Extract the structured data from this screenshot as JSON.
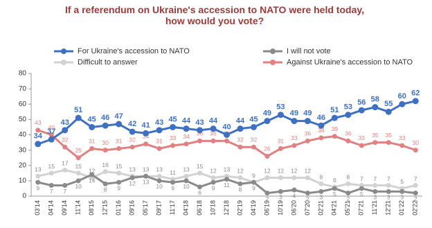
{
  "chart_data": {
    "type": "line",
    "title": "If a referendum on Ukraine's accession to NATO were held today, how would you vote?",
    "categories": [
      "03'14",
      "04'14",
      "09'14",
      "11'14",
      "08'15",
      "12'15",
      "01'16",
      "09'16",
      "05'17",
      "09'17",
      "11'17",
      "04'18",
      "06'18",
      "10'18",
      "12'18",
      "02'19",
      "04'19",
      "06'19",
      "10'19",
      "06'20",
      "07'20",
      "02'21",
      "04'21",
      "05'21",
      "07'21",
      "11'21",
      "12'21",
      "01'22",
      "02'22"
    ],
    "series": [
      {
        "name": "For Ukraine's accession to NATO",
        "color": "#3d6fc2",
        "values": [
          34,
          37,
          43,
          51,
          45,
          46,
          47,
          42,
          41,
          43,
          45,
          44,
          43,
          44,
          40,
          44,
          45,
          49,
          53,
          49,
          49,
          46,
          51,
          53,
          56,
          58,
          55,
          60,
          62
        ]
      },
      {
        "name": "I will not vote",
        "color": "#8a8a8a",
        "values": [
          9,
          7,
          7,
          10,
          14,
          8,
          9,
          12,
          13,
          10,
          9,
          10,
          6,
          9,
          11,
          8,
          9,
          2,
          3,
          4,
          2,
          3,
          5,
          2,
          5,
          3,
          3,
          3,
          2
        ]
      },
      {
        "name": "Difficult to answer",
        "color": "#d2d2d2",
        "values": [
          13,
          15,
          17,
          15,
          12,
          16,
          15,
          13,
          13,
          13,
          11,
          13,
          15,
          12,
          13,
          12,
          9,
          12,
          12,
          12,
          12,
          8,
          6,
          8,
          7,
          7,
          7,
          5,
          7
        ]
      },
      {
        "name": "Against Ukraine's accession to NATO",
        "color": "#e08080",
        "values": [
          43,
          40,
          32,
          25,
          31,
          30,
          31,
          32,
          34,
          31,
          33,
          34,
          36,
          36,
          36,
          32,
          32,
          26,
          31,
          33,
          36,
          38,
          39,
          36,
          33,
          35,
          35,
          33,
          30
        ]
      }
    ],
    "ylim": [
      0,
      80
    ],
    "yticks": [
      0,
      10,
      20,
      30,
      40,
      50,
      60,
      70,
      80
    ],
    "grid": false
  }
}
